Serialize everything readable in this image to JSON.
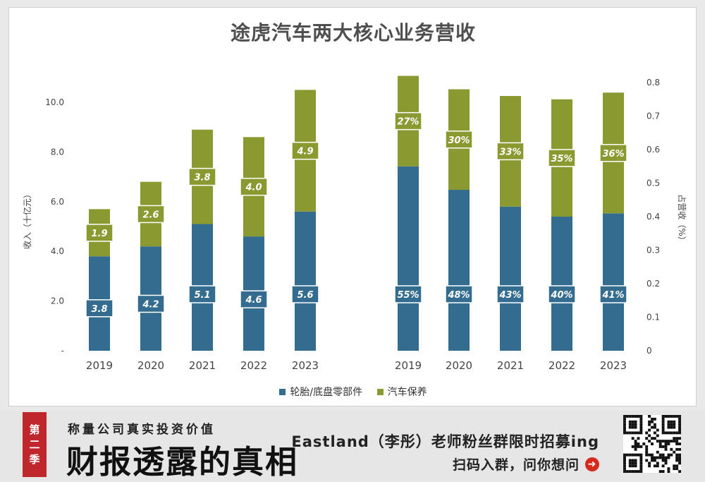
{
  "chart_data": {
    "type": "bar",
    "title": "途虎汽车两大核心业务营收",
    "panels": [
      {
        "name": "收入",
        "ylabel": "收入（十亿元）",
        "ylim": [
          0,
          11.0
        ],
        "yticks": [
          "-",
          "2.0",
          "4.0",
          "6.0",
          "8.0",
          "10.0"
        ],
        "categories": [
          "2019",
          "2020",
          "2021",
          "2022",
          "2023"
        ],
        "stacked": true,
        "series": [
          {
            "name": "轮胎/底盘零部件",
            "values": [
              3.8,
              4.2,
              5.1,
              4.6,
              5.6
            ],
            "labels": [
              "3.8",
              "4.2",
              "5.1",
              "4.6",
              "5.6"
            ]
          },
          {
            "name": "汽车保养",
            "values": [
              1.9,
              2.6,
              3.8,
              4.0,
              4.9
            ],
            "labels": [
              "1.9",
              "2.6",
              "3.8",
              "4.0",
              "4.9"
            ]
          }
        ]
      },
      {
        "name": "占营收",
        "ylabel": "占营收（%）",
        "ylim": [
          0,
          0.8
        ],
        "yticks": [
          "0",
          "0.1",
          "0.2",
          "0.3",
          "0.4",
          "0.5",
          "0.6",
          "0.7",
          "0.8"
        ],
        "categories": [
          "2019",
          "2020",
          "2021",
          "2022",
          "2023"
        ],
        "stacked": true,
        "series": [
          {
            "name": "轮胎/底盘零部件",
            "values": [
              0.55,
              0.48,
              0.43,
              0.4,
              0.41
            ],
            "labels": [
              "55%",
              "48%",
              "43%",
              "40%",
              "41%"
            ]
          },
          {
            "name": "汽车保养",
            "values": [
              0.27,
              0.3,
              0.33,
              0.35,
              0.36
            ],
            "labels": [
              "27%",
              "30%",
              "33%",
              "35%",
              "36%"
            ]
          }
        ]
      }
    ],
    "legend": [
      "轮胎/底盘零部件",
      "汽车保养"
    ],
    "legend_position": "bottom",
    "grid": false
  },
  "colors": {
    "series1": "#336c8e",
    "series2": "#8a9a30",
    "label_box": "#ffffff",
    "accent": "#c0272d"
  },
  "footer": {
    "badge_chars": [
      "第",
      "二",
      "季"
    ],
    "tagline": "称量公司真实投资价值",
    "headline": "财报透露的真相",
    "recruit": "Eastland（李彤）老师粉丝群限时招募ing",
    "scan": "扫码入群，问你想问",
    "arrow_icon": "arrow-right-circle-icon",
    "qr_icon": "qr-code-icon"
  }
}
